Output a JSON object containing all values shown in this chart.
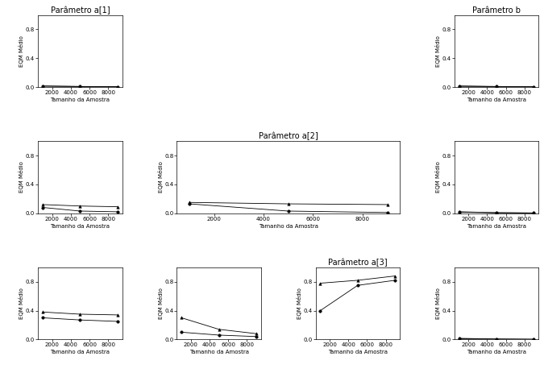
{
  "x": [
    1000,
    5000,
    9000
  ],
  "plots": {
    "a1": {
      "title": "Parâmetro a[1]",
      "lines": [
        {
          "y": [
            0.015,
            0.008,
            0.005
          ],
          "marker": "o",
          "color": "black",
          "linestyle": "-"
        },
        {
          "y": [
            0.012,
            0.007,
            0.004
          ],
          "marker": "^",
          "color": "black",
          "linestyle": "-"
        }
      ]
    },
    "b": {
      "title": "Parâmetro b",
      "lines": [
        {
          "y": [
            0.015,
            0.008,
            0.004
          ],
          "marker": "o",
          "color": "black",
          "linestyle": "-"
        },
        {
          "y": [
            0.01,
            0.006,
            0.003
          ],
          "marker": "^",
          "color": "black",
          "linestyle": "-"
        }
      ]
    },
    "a2_1": {
      "title": "",
      "lines": [
        {
          "y": [
            0.08,
            0.03,
            0.02
          ],
          "marker": "o",
          "color": "black",
          "linestyle": "-"
        },
        {
          "y": [
            0.12,
            0.1,
            0.09
          ],
          "marker": "^",
          "color": "black",
          "linestyle": "-"
        }
      ]
    },
    "a2_2": {
      "title": "Parâmetro a[2]",
      "lines": [
        {
          "y": [
            0.13,
            0.03,
            0.01
          ],
          "marker": "o",
          "color": "black",
          "linestyle": "-"
        },
        {
          "y": [
            0.15,
            0.13,
            0.12
          ],
          "marker": "^",
          "color": "black",
          "linestyle": "-"
        }
      ]
    },
    "a2_3": {
      "title": "",
      "lines": [
        {
          "y": [
            0.02,
            0.008,
            0.004
          ],
          "marker": "o",
          "color": "black",
          "linestyle": "-"
        },
        {
          "y": [
            0.015,
            0.006,
            0.003
          ],
          "marker": "^",
          "color": "black",
          "linestyle": "-"
        }
      ]
    },
    "a3_1": {
      "title": "",
      "lines": [
        {
          "y": [
            0.3,
            0.27,
            0.25
          ],
          "marker": "o",
          "color": "black",
          "linestyle": "-"
        },
        {
          "y": [
            0.38,
            0.35,
            0.34
          ],
          "marker": "^",
          "color": "black",
          "linestyle": "-"
        }
      ]
    },
    "a3_2": {
      "title": "",
      "lines": [
        {
          "y": [
            0.1,
            0.06,
            0.04
          ],
          "marker": "o",
          "color": "black",
          "linestyle": "-"
        },
        {
          "y": [
            0.3,
            0.14,
            0.08
          ],
          "marker": "^",
          "color": "black",
          "linestyle": "-"
        }
      ]
    },
    "a3_3": {
      "title": "Parâmetro a[3]",
      "lines": [
        {
          "y": [
            0.4,
            0.75,
            0.82
          ],
          "marker": "o",
          "color": "black",
          "linestyle": "-"
        },
        {
          "y": [
            0.78,
            0.82,
            0.88
          ],
          "marker": "^",
          "color": "black",
          "linestyle": "-"
        }
      ]
    },
    "a3_4": {
      "title": "",
      "lines": [
        {
          "y": [
            0.015,
            0.006,
            0.003
          ],
          "marker": "o",
          "color": "black",
          "linestyle": "-"
        },
        {
          "y": [
            0.01,
            0.005,
            0.002
          ],
          "marker": "^",
          "color": "black",
          "linestyle": "-"
        }
      ]
    }
  },
  "ylim": [
    0.0,
    1.0
  ],
  "yticks": [
    0.0,
    0.4,
    0.8
  ],
  "xlabel": "Tamanho da Amostra",
  "ylabel": "EQM Médio",
  "xticks": [
    2000,
    4000,
    6000,
    8000
  ],
  "markersize": 2.5,
  "linewidth": 0.6,
  "title_fontsize": 7,
  "label_fontsize": 5,
  "tick_fontsize": 5
}
